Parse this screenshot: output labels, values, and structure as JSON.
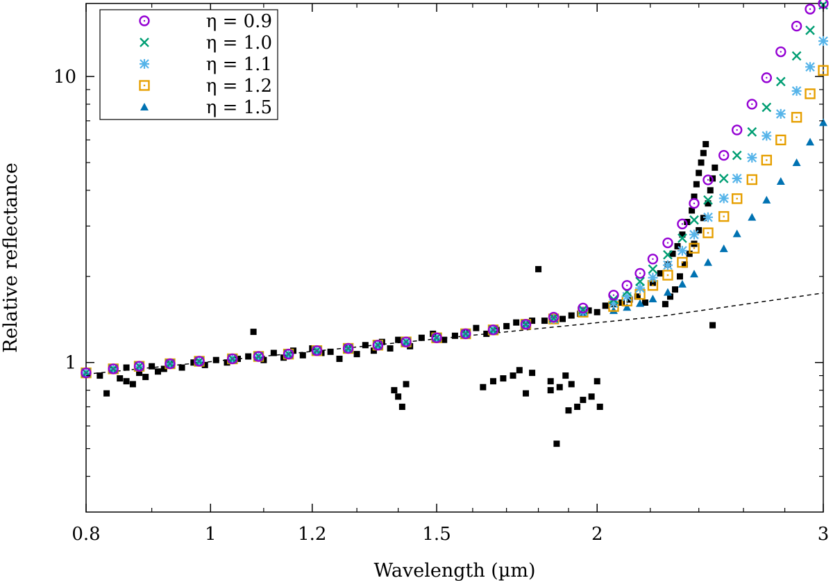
{
  "chart_data": {
    "type": "scatter",
    "xlabel": "Wavelength (µm)",
    "ylabel": "Relative reflectance",
    "xscale": "log",
    "yscale": "log",
    "xlim": [
      0.8,
      3.0
    ],
    "ylim": [
      0.3,
      18.0
    ],
    "xticks": [
      0.8,
      1,
      1.2,
      1.5,
      2,
      3
    ],
    "xtick_labels": [
      "0.8",
      "1",
      "1.2",
      "1.5",
      "2",
      "3"
    ],
    "yticks": [
      1,
      10
    ],
    "ytick_labels": [
      "1",
      "10"
    ],
    "grid": false,
    "legend_position": "top-left",
    "legend": [
      {
        "label": "η = 0.9",
        "marker": "circle-dot",
        "color": "#9400d3"
      },
      {
        "label": "η = 1.0",
        "marker": "cross",
        "color": "#009e73"
      },
      {
        "label": "η = 1.1",
        "marker": "asterisk",
        "color": "#56b4e9"
      },
      {
        "label": "η = 1.2",
        "marker": "square-dot",
        "color": "#e69f00"
      },
      {
        "label": "η = 1.5",
        "marker": "triangle",
        "color": "#0072b2"
      }
    ],
    "series": [
      {
        "name": "η = 0.9",
        "marker": "circle-dot",
        "color": "#9400d3",
        "x": [
          0.8,
          0.84,
          0.88,
          0.93,
          0.98,
          1.04,
          1.09,
          1.15,
          1.21,
          1.28,
          1.35,
          1.42,
          1.5,
          1.58,
          1.66,
          1.76,
          1.85,
          1.95,
          2.06,
          2.11,
          2.16,
          2.21,
          2.27,
          2.33,
          2.38,
          2.44,
          2.51,
          2.57,
          2.64,
          2.71,
          2.78,
          2.86,
          2.93,
          3.0
        ],
        "y": [
          0.92,
          0.95,
          0.97,
          0.99,
          1.01,
          1.03,
          1.05,
          1.07,
          1.1,
          1.12,
          1.15,
          1.18,
          1.22,
          1.26,
          1.3,
          1.36,
          1.44,
          1.55,
          1.72,
          1.86,
          2.05,
          2.3,
          2.62,
          3.05,
          3.6,
          4.35,
          5.3,
          6.5,
          8.0,
          9.9,
          12.2,
          15.0,
          17.2,
          18.0
        ]
      },
      {
        "name": "η = 1.0",
        "marker": "cross",
        "color": "#009e73",
        "x": [
          0.8,
          0.84,
          0.88,
          0.93,
          0.98,
          1.04,
          1.09,
          1.15,
          1.21,
          1.28,
          1.35,
          1.42,
          1.5,
          1.58,
          1.66,
          1.76,
          1.85,
          1.95,
          2.06,
          2.11,
          2.16,
          2.21,
          2.27,
          2.33,
          2.38,
          2.44,
          2.51,
          2.57,
          2.64,
          2.71,
          2.78,
          2.86,
          2.93,
          3.0
        ],
        "y": [
          0.92,
          0.95,
          0.97,
          0.99,
          1.01,
          1.03,
          1.05,
          1.07,
          1.1,
          1.12,
          1.15,
          1.18,
          1.22,
          1.26,
          1.3,
          1.36,
          1.43,
          1.53,
          1.66,
          1.77,
          1.92,
          2.12,
          2.38,
          2.72,
          3.15,
          3.7,
          4.4,
          5.3,
          6.4,
          7.8,
          9.6,
          11.8,
          14.5,
          17.8
        ]
      },
      {
        "name": "η = 1.1",
        "marker": "asterisk",
        "color": "#56b4e9",
        "x": [
          0.8,
          0.84,
          0.88,
          0.93,
          0.98,
          1.04,
          1.09,
          1.15,
          1.21,
          1.28,
          1.35,
          1.42,
          1.5,
          1.58,
          1.66,
          1.76,
          1.85,
          1.95,
          2.06,
          2.11,
          2.16,
          2.21,
          2.27,
          2.33,
          2.38,
          2.44,
          2.51,
          2.57,
          2.64,
          2.71,
          2.78,
          2.86,
          2.93,
          3.0
        ],
        "y": [
          0.92,
          0.95,
          0.97,
          0.99,
          1.01,
          1.03,
          1.05,
          1.07,
          1.1,
          1.12,
          1.15,
          1.18,
          1.22,
          1.26,
          1.3,
          1.36,
          1.42,
          1.51,
          1.61,
          1.7,
          1.82,
          1.98,
          2.19,
          2.46,
          2.8,
          3.22,
          3.75,
          4.4,
          5.2,
          6.2,
          7.4,
          8.9,
          10.8,
          13.3
        ]
      },
      {
        "name": "η = 1.2",
        "marker": "square-dot",
        "color": "#e69f00",
        "x": [
          0.8,
          0.84,
          0.88,
          0.93,
          0.98,
          1.04,
          1.09,
          1.15,
          1.21,
          1.28,
          1.35,
          1.42,
          1.5,
          1.58,
          1.66,
          1.76,
          1.85,
          1.95,
          2.06,
          2.11,
          2.16,
          2.21,
          2.27,
          2.33,
          2.38,
          2.44,
          2.51,
          2.57,
          2.64,
          2.71,
          2.78,
          2.86,
          2.93,
          3.0
        ],
        "y": [
          0.92,
          0.95,
          0.97,
          0.99,
          1.01,
          1.03,
          1.05,
          1.07,
          1.1,
          1.12,
          1.15,
          1.18,
          1.22,
          1.26,
          1.3,
          1.36,
          1.42,
          1.5,
          1.57,
          1.64,
          1.73,
          1.86,
          2.02,
          2.24,
          2.51,
          2.84,
          3.24,
          3.74,
          4.36,
          5.1,
          6.0,
          7.2,
          8.7,
          10.5
        ]
      },
      {
        "name": "η = 1.5",
        "marker": "triangle",
        "color": "#0072b2",
        "x": [
          0.8,
          0.84,
          0.88,
          0.93,
          0.98,
          1.04,
          1.09,
          1.15,
          1.21,
          1.28,
          1.35,
          1.42,
          1.5,
          1.58,
          1.66,
          1.76,
          1.85,
          1.95,
          2.06,
          2.11,
          2.16,
          2.21,
          2.27,
          2.33,
          2.38,
          2.44,
          2.51,
          2.57,
          2.64,
          2.71,
          2.78,
          2.86,
          2.93,
          3.0
        ],
        "y": [
          0.92,
          0.95,
          0.97,
          0.99,
          1.01,
          1.03,
          1.05,
          1.07,
          1.1,
          1.12,
          1.15,
          1.18,
          1.22,
          1.26,
          1.3,
          1.36,
          1.42,
          1.48,
          1.52,
          1.56,
          1.61,
          1.67,
          1.76,
          1.88,
          2.04,
          2.24,
          2.5,
          2.82,
          3.22,
          3.7,
          4.3,
          5.0,
          5.9,
          6.9
        ]
      },
      {
        "name": "",
        "marker": "filled-square",
        "color": "#000000",
        "x": [
          0.82,
          0.83,
          0.84,
          0.85,
          0.86,
          0.86,
          0.87,
          0.88,
          0.89,
          0.9,
          0.91,
          0.92,
          0.93,
          0.95,
          0.97,
          0.99,
          1.01,
          1.03,
          1.05,
          1.07,
          1.08,
          1.1,
          1.12,
          1.14,
          1.16,
          1.18,
          1.2,
          1.22,
          1.24,
          1.26,
          1.28,
          1.3,
          1.32,
          1.34,
          1.36,
          1.38,
          1.4,
          1.43,
          1.46,
          1.49,
          1.52,
          1.55,
          1.58,
          1.61,
          1.64,
          1.67,
          1.7,
          1.73,
          1.76,
          1.78,
          1.8,
          1.82,
          1.85,
          1.88,
          1.91,
          1.94,
          1.97,
          2.0,
          2.03,
          2.06,
          2.09,
          2.12,
          2.15,
          2.18,
          2.21,
          2.24,
          2.27,
          2.29,
          2.31,
          2.33,
          2.35,
          2.37,
          2.38,
          2.39,
          2.4,
          2.41,
          2.42,
          2.43,
          1.39,
          1.4,
          1.41,
          1.42,
          1.63,
          1.66,
          1.69,
          1.72,
          1.74,
          1.76,
          1.78,
          1.84,
          1.87,
          1.89,
          1.91,
          1.93,
          1.95,
          1.98,
          2.0,
          2.01,
          1.84,
          1.86,
          1.9,
          2.26,
          2.28,
          2.3,
          2.32,
          2.34,
          2.36,
          2.38,
          2.4,
          2.42,
          2.44,
          2.45,
          2.46,
          2.47,
          2.46
        ],
        "y": [
          0.9,
          0.78,
          0.94,
          0.88,
          0.96,
          0.86,
          0.84,
          0.92,
          0.89,
          0.97,
          0.93,
          0.95,
          0.99,
          0.96,
          1.0,
          0.98,
          1.02,
          1.0,
          1.03,
          1.05,
          1.28,
          1.02,
          1.08,
          1.04,
          1.1,
          1.06,
          1.12,
          1.08,
          1.09,
          1.03,
          1.12,
          1.07,
          1.15,
          1.1,
          1.18,
          1.12,
          1.2,
          1.14,
          1.22,
          1.26,
          1.2,
          1.24,
          1.28,
          1.32,
          1.26,
          1.3,
          1.34,
          1.38,
          1.36,
          1.4,
          2.12,
          1.4,
          1.44,
          1.42,
          1.46,
          1.48,
          1.52,
          1.5,
          1.58,
          1.6,
          1.62,
          1.66,
          1.7,
          1.62,
          1.9,
          2.05,
          2.2,
          2.4,
          2.55,
          2.8,
          3.1,
          3.4,
          3.8,
          4.2,
          4.6,
          5.0,
          5.4,
          5.8,
          0.8,
          0.76,
          0.7,
          0.84,
          0.82,
          0.86,
          0.88,
          0.9,
          0.94,
          0.78,
          0.92,
          0.86,
          0.82,
          0.9,
          0.84,
          0.7,
          0.74,
          0.76,
          0.86,
          0.7,
          0.8,
          0.52,
          0.68,
          1.6,
          1.7,
          1.8,
          2.0,
          2.2,
          2.4,
          2.6,
          2.9,
          3.2,
          3.6,
          4.0,
          4.4,
          4.8,
          1.35
        ]
      }
    ],
    "dashed_line": {
      "x": [
        0.8,
        2.24,
        3.0
      ],
      "y": [
        0.91,
        1.45,
        1.75
      ]
    }
  }
}
